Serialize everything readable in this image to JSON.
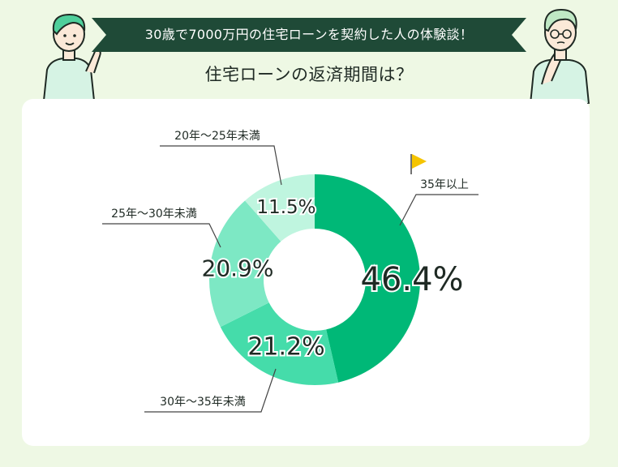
{
  "header": {
    "banner": "30歳で7000万円の住宅ローンを契約した人の体験談！",
    "subtitle": "住宅ローンの返済期間は？"
  },
  "colors": {
    "background": "#eef8e4",
    "banner": "#1f4a37",
    "slice_1": "#00b877",
    "slice_2": "#45dcaa",
    "slice_3": "#7de8c4",
    "slice_4": "#bff5df",
    "flag": "#f5c400"
  },
  "chart_data": {
    "type": "pie",
    "title": "住宅ローンの返済期間は？",
    "donut": true,
    "unit": "%",
    "slices": [
      {
        "label": "35年以上",
        "value": 46.4,
        "display": "46.4%",
        "color": "#00b877"
      },
      {
        "label": "30年～35年未満",
        "value": 21.2,
        "display": "21.2%",
        "color": "#45dcaa"
      },
      {
        "label": "25年～30年未満",
        "value": 20.9,
        "display": "20.9%",
        "color": "#7de8c4"
      },
      {
        "label": "20年～25年未満",
        "value": 11.5,
        "display": "11.5%",
        "color": "#bff5df"
      }
    ],
    "start_angle_deg": 0,
    "direction": "clockwise"
  },
  "icons": {
    "left_person": "pointing-person-icon",
    "right_person": "thinking-person-icon",
    "flag": "flag-icon"
  }
}
